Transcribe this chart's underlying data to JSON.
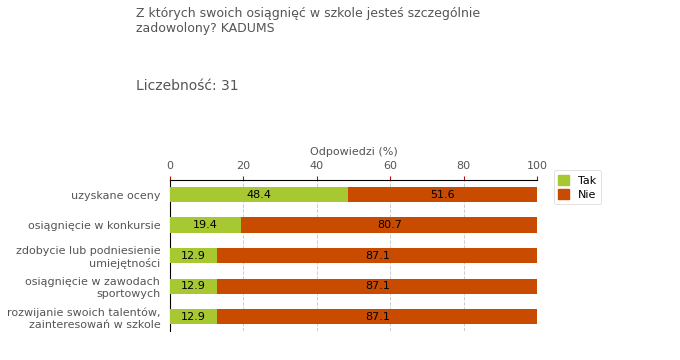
{
  "title": "Z których swoich osiągnięć w szkole jesteś szczególnie\nzadowolony? KADUMS",
  "subtitle": "Liczebność: 31",
  "xlabel": "Odpowiedzi (%)",
  "categories": [
    "uzyskane oceny",
    "osiągnięcie w konkursie",
    "zdobycie lub podniesienie\numiejętności",
    "osiągnięcie w zawodach\nsportowych",
    "rozwijanie swoich talentów,\nzainteresowań w szkole"
  ],
  "tak_values": [
    48.4,
    19.4,
    12.9,
    12.9,
    12.9
  ],
  "nie_values": [
    51.6,
    80.7,
    87.1,
    87.1,
    87.1
  ],
  "tak_color": "#a8c832",
  "nie_color": "#c84b00",
  "bar_height": 0.5,
  "xlim": [
    0,
    100
  ],
  "xticks": [
    0,
    20,
    40,
    60,
    80,
    100
  ],
  "grid_color": "#cccccc",
  "bg_color": "#ffffff",
  "text_color": "#555555",
  "legend_tak": "Tak",
  "legend_nie": "Nie",
  "title_fontsize": 9,
  "subtitle_fontsize": 10,
  "axis_fontsize": 8,
  "bar_label_fontsize": 8
}
